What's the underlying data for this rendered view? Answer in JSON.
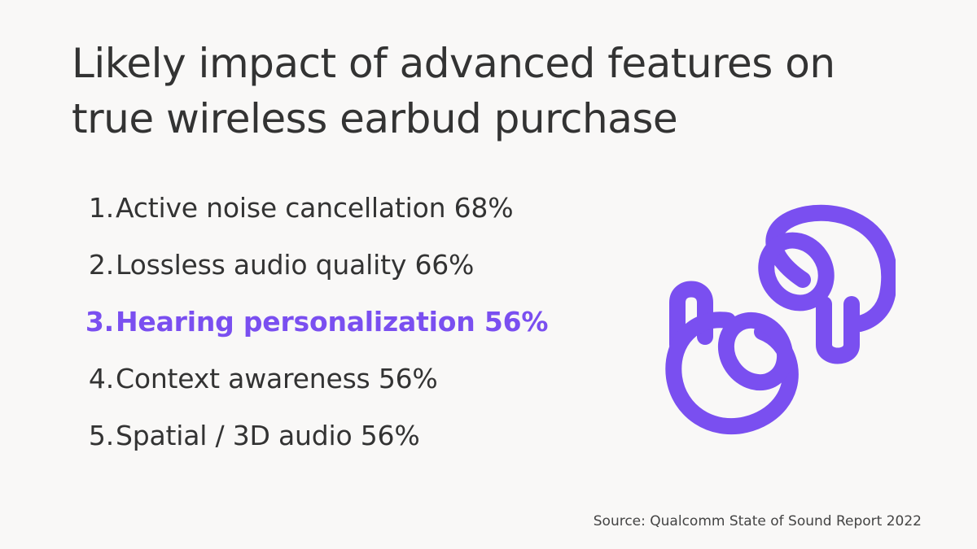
{
  "title": {
    "line1": "Likely impact of advanced features on",
    "line2": "true wireless earbud purchase"
  },
  "features": [
    {
      "number": "1.",
      "label": "Active noise cancellation 68%"
    },
    {
      "number": "2.",
      "label": "Lossless audio quality 66%"
    },
    {
      "number": "3.",
      "label": "Hearing personalization 56%"
    },
    {
      "number": "4.",
      "label": "Context awareness 56%"
    },
    {
      "number": "5.",
      "label": "Spatial / 3D audio 56%"
    }
  ],
  "highlighted_item": 3,
  "source": "Source: Qualcomm State of Sound Report 2022",
  "illustration": {
    "icon": "earbuds-icon",
    "color": "#7a4ff0"
  },
  "colors": {
    "background": "#f9f8f7",
    "text": "#333333",
    "accent": "#7a4ff0"
  }
}
